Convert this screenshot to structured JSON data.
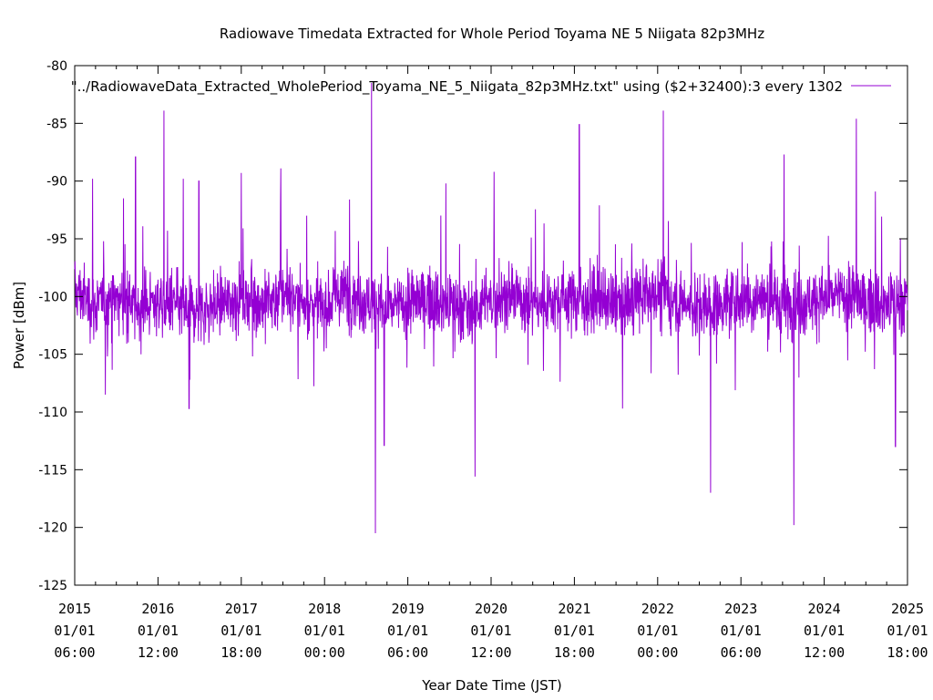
{
  "chart_data": {
    "type": "line",
    "title": "Radiowave Timedata Extracted for Whole Period Toyama NE 5 Niigata 82p3MHz",
    "xlabel": "Year Date Time (JST)",
    "ylabel": "Power [dBm]",
    "ylim": [
      -125,
      -80
    ],
    "yticks": [
      -80,
      -85,
      -90,
      -95,
      -100,
      -105,
      -110,
      -115,
      -120,
      -125
    ],
    "xlim": [
      "2015-01-01T06:00",
      "2025-01-01T18:00"
    ],
    "xticks": [
      {
        "year": "2015",
        "date": "01/01",
        "time": "06:00"
      },
      {
        "year": "2016",
        "date": "01/01",
        "time": "12:00"
      },
      {
        "year": "2017",
        "date": "01/01",
        "time": "18:00"
      },
      {
        "year": "2018",
        "date": "01/01",
        "time": "00:00"
      },
      {
        "year": "2019",
        "date": "01/01",
        "time": "06:00"
      },
      {
        "year": "2020",
        "date": "01/01",
        "time": "12:00"
      },
      {
        "year": "2021",
        "date": "01/01",
        "time": "18:00"
      },
      {
        "year": "2022",
        "date": "01/01",
        "time": "00:00"
      },
      {
        "year": "2023",
        "date": "01/01",
        "time": "06:00"
      },
      {
        "year": "2024",
        "date": "01/01",
        "time": "12:00"
      },
      {
        "year": "2025",
        "date": "01/01",
        "time": "18:00"
      }
    ],
    "legend_position": "top-right",
    "grid": false,
    "series": [
      {
        "name": "\"../RadiowaveData_Extracted_WholePeriod_Toyama_NE_5_Niigata_82p3MHz.txt\" using ($2+32400):3 every 1302",
        "color": "#9400d3",
        "x": [
          "2015-01-01",
          "2015-04-01",
          "2015-07-01",
          "2015-10-01",
          "2016-01-01",
          "2016-04-01",
          "2016-07-01",
          "2016-10-01",
          "2017-01-01",
          "2017-04-01",
          "2017-07-01",
          "2017-10-01",
          "2018-01-01",
          "2018-04-01",
          "2018-07-01",
          "2018-10-01",
          "2019-01-01",
          "2019-04-01",
          "2019-07-01",
          "2019-10-01",
          "2020-01-01",
          "2020-04-01",
          "2020-07-01",
          "2020-10-01",
          "2021-01-01",
          "2021-04-01",
          "2021-07-01",
          "2021-10-01",
          "2022-01-01",
          "2022-04-01",
          "2022-07-01",
          "2022-10-01",
          "2023-01-01",
          "2023-04-01",
          "2023-07-01",
          "2023-10-01",
          "2024-01-01",
          "2024-04-01",
          "2024-07-01",
          "2024-10-01",
          "2025-01-01"
        ],
        "values": [
          -99.5,
          -100.8,
          -100.2,
          -101.0,
          -100.4,
          -100.9,
          -101.2,
          -100.6,
          -100.1,
          -100.7,
          -99.8,
          -100.5,
          -100.9,
          -99.6,
          -100.3,
          -101.1,
          -100.6,
          -100.2,
          -100.8,
          -101.0,
          -100.4,
          -99.9,
          -100.6,
          -100.3,
          -100.0,
          -100.5,
          -100.8,
          -100.2,
          -99.7,
          -100.4,
          -100.9,
          -100.6,
          -100.3,
          -100.1,
          -100.7,
          -100.4,
          -100.2,
          -99.9,
          -100.5,
          -100.7,
          -100.3
        ],
        "spikes": [
          {
            "x": "2015-03-21",
            "value": -89.8
          },
          {
            "x": "2015-05-16",
            "value": -108.5
          },
          {
            "x": "2015-08-03",
            "value": -91.5
          },
          {
            "x": "2015-09-25",
            "value": -87.9
          },
          {
            "x": "2016-01-28",
            "value": -83.9
          },
          {
            "x": "2016-04-21",
            "value": -89.8
          },
          {
            "x": "2016-05-17",
            "value": -109.7
          },
          {
            "x": "2016-06-29",
            "value": -90.0
          },
          {
            "x": "2017-01-01",
            "value": -89.3
          },
          {
            "x": "2017-06-23",
            "value": -88.9
          },
          {
            "x": "2017-10-15",
            "value": -93.0
          },
          {
            "x": "2018-04-21",
            "value": -91.6
          },
          {
            "x": "2018-07-26",
            "value": -81.5
          },
          {
            "x": "2018-08-12",
            "value": -120.5
          },
          {
            "x": "2018-09-20",
            "value": -112.9
          },
          {
            "x": "2019-06-18",
            "value": -90.2
          },
          {
            "x": "2019-10-24",
            "value": -115.6
          },
          {
            "x": "2020-01-15",
            "value": -89.2
          },
          {
            "x": "2021-01-23",
            "value": -85.1
          },
          {
            "x": "2021-04-21",
            "value": -92.1
          },
          {
            "x": "2021-08-01",
            "value": -109.7
          },
          {
            "x": "2022-01-27",
            "value": -83.9
          },
          {
            "x": "2022-08-22",
            "value": -117.0
          },
          {
            "x": "2023-07-10",
            "value": -87.7
          },
          {
            "x": "2023-08-22",
            "value": -119.8
          },
          {
            "x": "2024-05-22",
            "value": -84.6
          },
          {
            "x": "2024-08-14",
            "value": -90.9
          },
          {
            "x": "2024-11-10",
            "value": -113.0
          }
        ]
      }
    ]
  }
}
